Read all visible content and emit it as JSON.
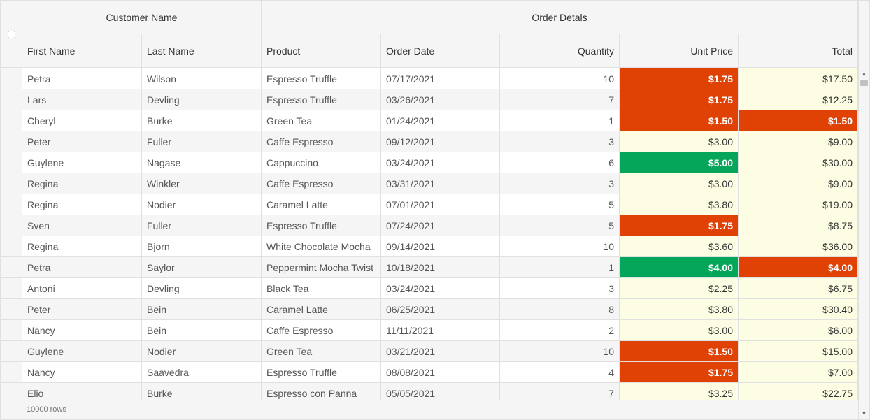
{
  "header": {
    "groups": [
      "Customer Name",
      "Order Detals"
    ],
    "columns": [
      "First Name",
      "Last Name",
      "Product",
      "Order Date",
      "Quantity",
      "Unit Price",
      "Total"
    ]
  },
  "rows": [
    {
      "first": "Petra",
      "last": "Wilson",
      "product": "Espresso Truffle",
      "date": "07/17/2021",
      "qty": "10",
      "price": "$1.75",
      "price_level": "low",
      "total": "$17.50",
      "total_level": "normal"
    },
    {
      "first": "Lars",
      "last": "Devling",
      "product": "Espresso Truffle",
      "date": "03/26/2021",
      "qty": "7",
      "price": "$1.75",
      "price_level": "low",
      "total": "$12.25",
      "total_level": "normal"
    },
    {
      "first": "Cheryl",
      "last": "Burke",
      "product": "Green Tea",
      "date": "01/24/2021",
      "qty": "1",
      "price": "$1.50",
      "price_level": "low",
      "total": "$1.50",
      "total_level": "low"
    },
    {
      "first": "Peter",
      "last": "Fuller",
      "product": "Caffe Espresso",
      "date": "09/12/2021",
      "qty": "3",
      "price": "$3.00",
      "price_level": "normal",
      "total": "$9.00",
      "total_level": "normal"
    },
    {
      "first": "Guylene",
      "last": "Nagase",
      "product": "Cappuccino",
      "date": "03/24/2021",
      "qty": "6",
      "price": "$5.00",
      "price_level": "high",
      "total": "$30.00",
      "total_level": "normal"
    },
    {
      "first": "Regina",
      "last": "Winkler",
      "product": "Caffe Espresso",
      "date": "03/31/2021",
      "qty": "3",
      "price": "$3.00",
      "price_level": "normal",
      "total": "$9.00",
      "total_level": "normal"
    },
    {
      "first": "Regina",
      "last": "Nodier",
      "product": "Caramel Latte",
      "date": "07/01/2021",
      "qty": "5",
      "price": "$3.80",
      "price_level": "normal",
      "total": "$19.00",
      "total_level": "normal"
    },
    {
      "first": "Sven",
      "last": "Fuller",
      "product": "Espresso Truffle",
      "date": "07/24/2021",
      "qty": "5",
      "price": "$1.75",
      "price_level": "low",
      "total": "$8.75",
      "total_level": "normal"
    },
    {
      "first": "Regina",
      "last": "Bjorn",
      "product": "White Chocolate Mocha",
      "date": "09/14/2021",
      "qty": "10",
      "price": "$3.60",
      "price_level": "normal",
      "total": "$36.00",
      "total_level": "normal"
    },
    {
      "first": "Petra",
      "last": "Saylor",
      "product": "Peppermint Mocha Twist",
      "date": "10/18/2021",
      "qty": "1",
      "price": "$4.00",
      "price_level": "high",
      "total": "$4.00",
      "total_level": "low"
    },
    {
      "first": "Antoni",
      "last": "Devling",
      "product": "Black Tea",
      "date": "03/24/2021",
      "qty": "3",
      "price": "$2.25",
      "price_level": "normal",
      "total": "$6.75",
      "total_level": "normal"
    },
    {
      "first": "Peter",
      "last": "Bein",
      "product": "Caramel Latte",
      "date": "06/25/2021",
      "qty": "8",
      "price": "$3.80",
      "price_level": "normal",
      "total": "$30.40",
      "total_level": "normal"
    },
    {
      "first": "Nancy",
      "last": "Bein",
      "product": "Caffe Espresso",
      "date": "11/11/2021",
      "qty": "2",
      "price": "$3.00",
      "price_level": "normal",
      "total": "$6.00",
      "total_level": "normal"
    },
    {
      "first": "Guylene",
      "last": "Nodier",
      "product": "Green Tea",
      "date": "03/21/2021",
      "qty": "10",
      "price": "$1.50",
      "price_level": "low",
      "total": "$15.00",
      "total_level": "normal"
    },
    {
      "first": "Nancy",
      "last": "Saavedra",
      "product": "Espresso Truffle",
      "date": "08/08/2021",
      "qty": "4",
      "price": "$1.75",
      "price_level": "low",
      "total": "$7.00",
      "total_level": "normal"
    },
    {
      "first": "Elio",
      "last": "Burke",
      "product": "Espresso con Panna",
      "date": "05/05/2021",
      "qty": "7",
      "price": "$3.25",
      "price_level": "normal",
      "total": "$22.75",
      "total_level": "normal"
    }
  ],
  "footer": {
    "row_count": "10000 rows"
  },
  "colors": {
    "low": "#e04206",
    "high": "#06a65a",
    "normal": "#fdfde3"
  },
  "icons": {
    "scroll_up": "chevron-up-icon",
    "scroll_down": "chevron-down-icon",
    "select_all": "checkbox-icon"
  }
}
